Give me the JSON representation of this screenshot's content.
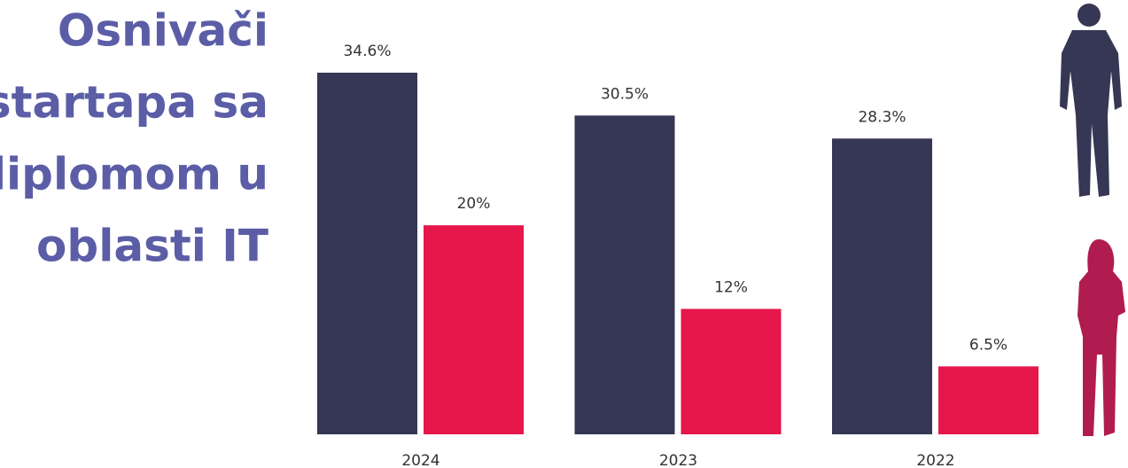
{
  "chart_data": {
    "type": "bar",
    "title": [
      "Osnivači",
      "startapa sa",
      "diplomom u",
      "oblasti IT"
    ],
    "categories": [
      "2024",
      "2023",
      "2022"
    ],
    "series": [
      {
        "color": "#363755",
        "values": [
          34.6,
          30.5,
          28.3
        ],
        "value_labels": [
          "34.6%",
          "30.5%",
          "28.3%"
        ]
      },
      {
        "color": "#e5174b",
        "values": [
          20,
          12,
          6.5
        ],
        "value_labels": [
          "20%",
          "12%",
          "6.5%"
        ]
      }
    ]
  }
}
